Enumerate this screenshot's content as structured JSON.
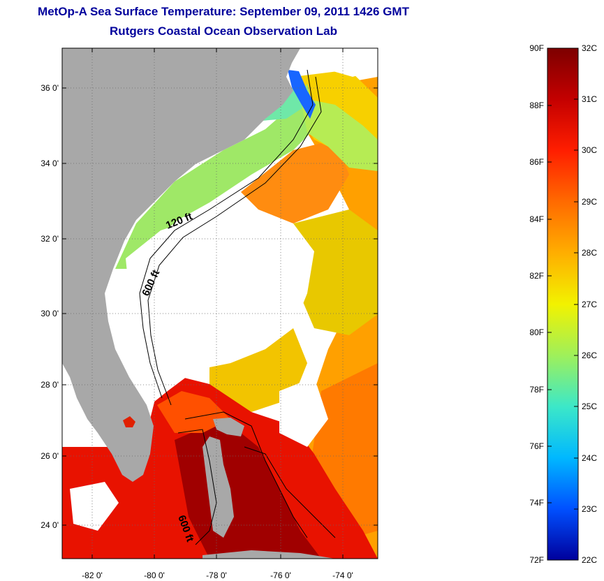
{
  "header": {
    "title": "MetOp-A Sea Surface Temperature:  September 09, 2011 1426 GMT",
    "subtitle": "Rutgers Coastal Ocean Observation Lab"
  },
  "map": {
    "lat_ticks": [
      "36 0'",
      "34 0'",
      "32 0'",
      "30 0'",
      "28 0'",
      "26 0'",
      "24 0'"
    ],
    "lon_ticks": [
      "-82 0'",
      "-80 0'",
      "-78 0'",
      "-76 0'",
      "-74 0'"
    ],
    "contour_labels": [
      "120 ft",
      "600 ft",
      "600 ft"
    ],
    "colors": {
      "land": "#a8a8a8",
      "no_data": "#ffffff",
      "grid": "#6a6a6a"
    }
  },
  "colorbar": {
    "fahrenheit_labels": [
      "90F",
      "88F",
      "86F",
      "84F",
      "82F",
      "80F",
      "78F",
      "76F",
      "74F",
      "72F"
    ],
    "celsius_labels": [
      "32C",
      "31C",
      "30C",
      "29C",
      "28C",
      "27C",
      "26C",
      "25C",
      "24C",
      "23C",
      "22C"
    ],
    "scale": [
      "#7d0000",
      "#c40000",
      "#ff1e00",
      "#ff6a00",
      "#ffae00",
      "#f2f200",
      "#9ff05a",
      "#3ce8c8",
      "#00b8ff",
      "#0050ff",
      "#00009c"
    ]
  }
}
